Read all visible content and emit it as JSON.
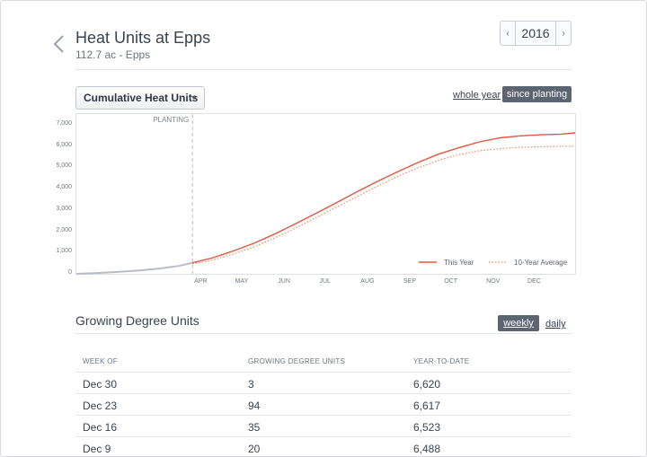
{
  "header": {
    "title": "Heat Units at Epps",
    "subtitle": "112.7 ac - Epps",
    "year": "2016",
    "prev_icon": "‹",
    "next_icon": "›"
  },
  "controls": {
    "metric_select": "Cumulative Heat Units",
    "range_whole": "whole year",
    "range_planting": "since planting"
  },
  "chart_data": {
    "type": "line",
    "annotation": "PLANTING",
    "y_ticks": [
      "0",
      "1,000",
      "2,000",
      "3,000",
      "4,000",
      "5,000",
      "6,000",
      "7,000"
    ],
    "ylim": [
      0,
      7000
    ],
    "x_ticks": [
      "APR",
      "MAY",
      "JUN",
      "JUL",
      "AUG",
      "SEP",
      "OCT",
      "NOV",
      "DEC"
    ],
    "x_tick_days": [
      91,
      121,
      152,
      182,
      213,
      244,
      274,
      305,
      335
    ],
    "xlim": [
      0,
      365
    ],
    "planting_day": 85,
    "legend_position": "bottom-right",
    "colors": {
      "this_year": "#e4563f",
      "average": "#e98a64",
      "pre_planting": "#b8bcc6"
    },
    "series": [
      {
        "name": "This Year",
        "style": "solid",
        "x": [
          0,
          15,
          30,
          45,
          60,
          75,
          85,
          100,
          115,
          130,
          145,
          160,
          175,
          190,
          205,
          220,
          235,
          250,
          265,
          280,
          295,
          310,
          325,
          340,
          355,
          365
        ],
        "y": [
          0,
          40,
          90,
          150,
          240,
          370,
          520,
          760,
          1080,
          1440,
          1870,
          2340,
          2830,
          3330,
          3840,
          4330,
          4790,
          5230,
          5620,
          5930,
          6200,
          6390,
          6480,
          6530,
          6560,
          6620
        ]
      },
      {
        "name": "10-Year Average",
        "style": "dotted",
        "x": [
          85,
          100,
          115,
          130,
          145,
          160,
          175,
          190,
          205,
          220,
          235,
          250,
          265,
          280,
          295,
          310,
          325,
          340,
          355,
          365
        ],
        "y": [
          470,
          650,
          930,
          1270,
          1680,
          2140,
          2630,
          3120,
          3620,
          4110,
          4570,
          4980,
          5330,
          5600,
          5780,
          5880,
          5940,
          5970,
          5990,
          6000
        ]
      }
    ]
  },
  "gdu": {
    "title": "Growing Degree Units",
    "view_weekly": "weekly",
    "view_daily": "daily",
    "columns": [
      "WEEK OF",
      "GROWING DEGREE UNITS",
      "YEAR-TO-DATE"
    ],
    "rows": [
      {
        "week": "Dec 30",
        "units": "3",
        "ytd": "6,620"
      },
      {
        "week": "Dec 23",
        "units": "94",
        "ytd": "6,617"
      },
      {
        "week": "Dec 16",
        "units": "35",
        "ytd": "6,523"
      },
      {
        "week": "Dec 9",
        "units": "20",
        "ytd": "6,488"
      }
    ]
  }
}
